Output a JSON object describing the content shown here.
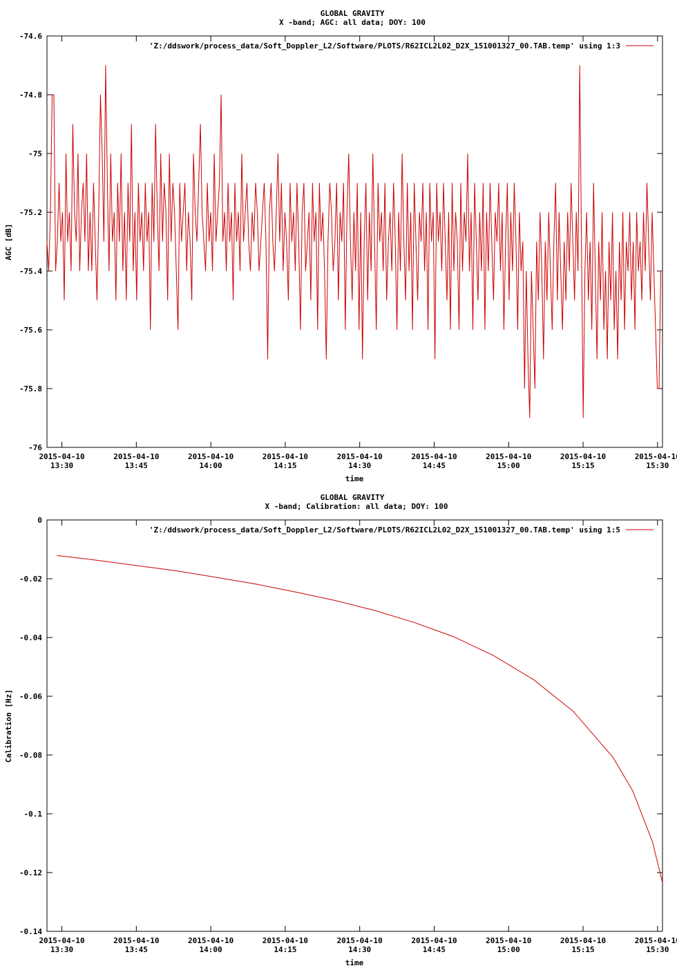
{
  "chart_data": [
    {
      "type": "line",
      "title": "GLOBAL GRAVITY",
      "subtitle": "X -band; AGC: all data; DOY: 100",
      "xlabel": "time",
      "ylabel": "AGC [dB]",
      "xlim": [
        "2015-04-10 13:27",
        "2015-04-10 15:31"
      ],
      "ylim": [
        -76,
        -74.6
      ],
      "yticks": [
        -74.6,
        -74.8,
        -75,
        -75.2,
        -75.4,
        -75.6,
        -75.8,
        -76
      ],
      "ytick_labels": [
        "-74.6",
        "-74.8",
        "-75",
        "-75.2",
        "-75.4",
        "-75.6",
        "-75.8",
        "-76"
      ],
      "xticks": [
        "13:30",
        "13:45",
        "14:00",
        "14:15",
        "14:30",
        "14:45",
        "15:00",
        "15:15",
        "15:30"
      ],
      "xtick_dates": [
        "2015-04-10",
        "2015-04-10",
        "2015-04-10",
        "2015-04-10",
        "2015-04-10",
        "2015-04-10",
        "2015-04-10",
        "2015-04-10",
        "2015-04-10"
      ],
      "legend_position": "top-right",
      "grid": false,
      "color": "#cc0000",
      "series": [
        {
          "name": "'Z:/ddswork/process_data/Soft_Doppler_L2/Software/PLOTS/R62ICL2L02_D2X_151001327_00.TAB.temp' using 1:3",
          "x_start": "2015-04-10 13:27",
          "x_end": "2015-04-10 15:31",
          "values": [
            -75.3,
            -75.4,
            -75.2,
            -74.8,
            -74.8,
            -75.4,
            -75.3,
            -75.1,
            -75.3,
            -75.2,
            -75.5,
            -75.0,
            -75.3,
            -75.2,
            -75.4,
            -74.9,
            -75.2,
            -75.3,
            -75.0,
            -75.4,
            -75.2,
            -75.1,
            -75.3,
            -75.0,
            -75.4,
            -75.2,
            -75.4,
            -75.1,
            -75.3,
            -75.5,
            -75.2,
            -74.8,
            -75.0,
            -75.3,
            -74.7,
            -75.1,
            -75.4,
            -75.0,
            -75.3,
            -75.2,
            -75.5,
            -75.1,
            -75.3,
            -75.0,
            -75.4,
            -75.2,
            -75.5,
            -75.1,
            -75.3,
            -74.9,
            -75.4,
            -75.2,
            -75.5,
            -75.1,
            -75.3,
            -75.2,
            -75.4,
            -75.1,
            -75.3,
            -75.2,
            -75.6,
            -75.1,
            -75.3,
            -74.9,
            -75.2,
            -75.4,
            -75.0,
            -75.3,
            -75.1,
            -75.2,
            -75.5,
            -75.0,
            -75.3,
            -75.1,
            -75.2,
            -75.4,
            -75.6,
            -75.1,
            -75.3,
            -75.2,
            -75.1,
            -75.4,
            -75.2,
            -75.3,
            -75.5,
            -75.0,
            -75.2,
            -75.3,
            -75.1,
            -74.9,
            -75.2,
            -75.3,
            -75.4,
            -75.1,
            -75.3,
            -75.2,
            -75.4,
            -75.0,
            -75.3,
            -75.2,
            -75.1,
            -74.8,
            -75.3,
            -75.2,
            -75.4,
            -75.1,
            -75.3,
            -75.2,
            -75.5,
            -75.1,
            -75.3,
            -75.2,
            -75.4,
            -75.0,
            -75.3,
            -75.2,
            -75.1,
            -75.3,
            -75.4,
            -75.2,
            -75.3,
            -75.1,
            -75.2,
            -75.4,
            -75.3,
            -75.2,
            -75.1,
            -75.3,
            -75.7,
            -75.2,
            -75.1,
            -75.3,
            -75.4,
            -75.2,
            -75.0,
            -75.3,
            -75.1,
            -75.4,
            -75.2,
            -75.3,
            -75.5,
            -75.1,
            -75.3,
            -75.2,
            -75.4,
            -75.1,
            -75.3,
            -75.6,
            -75.2,
            -75.1,
            -75.4,
            -75.3,
            -75.2,
            -75.5,
            -75.1,
            -75.3,
            -75.2,
            -75.6,
            -75.1,
            -75.3,
            -75.2,
            -75.4,
            -75.7,
            -75.3,
            -75.1,
            -75.2,
            -75.4,
            -75.3,
            -75.1,
            -75.5,
            -75.2,
            -75.3,
            -75.1,
            -75.6,
            -75.2,
            -75.0,
            -75.3,
            -75.5,
            -75.2,
            -75.4,
            -75.1,
            -75.6,
            -75.2,
            -75.7,
            -75.3,
            -75.1,
            -75.5,
            -75.2,
            -75.4,
            -75.0,
            -75.3,
            -75.6,
            -75.1,
            -75.3,
            -75.2,
            -75.4,
            -75.1,
            -75.5,
            -75.3,
            -75.2,
            -75.4,
            -75.1,
            -75.3,
            -75.6,
            -75.2,
            -75.4,
            -75.0,
            -75.3,
            -75.5,
            -75.1,
            -75.4,
            -75.2,
            -75.6,
            -75.1,
            -75.3,
            -75.5,
            -75.2,
            -75.3,
            -75.1,
            -75.4,
            -75.2,
            -75.6,
            -75.1,
            -75.3,
            -75.2,
            -75.7,
            -75.1,
            -75.3,
            -75.2,
            -75.4,
            -75.1,
            -75.3,
            -75.5,
            -75.2,
            -75.6,
            -75.1,
            -75.4,
            -75.2,
            -75.3,
            -75.6,
            -75.1,
            -75.4,
            -75.2,
            -75.3,
            -75.0,
            -75.4,
            -75.2,
            -75.6,
            -75.1,
            -75.3,
            -75.5,
            -75.2,
            -75.4,
            -75.1,
            -75.6,
            -75.2,
            -75.4,
            -75.1,
            -75.3,
            -75.5,
            -75.2,
            -75.3,
            -75.1,
            -75.4,
            -75.2,
            -75.6,
            -75.3,
            -75.1,
            -75.5,
            -75.2,
            -75.4,
            -75.1,
            -75.3,
            -75.6,
            -75.2,
            -75.4,
            -75.3,
            -75.8,
            -75.4,
            -75.7,
            -75.9,
            -75.4,
            -75.6,
            -75.8,
            -75.3,
            -75.5,
            -75.2,
            -75.4,
            -75.7,
            -75.3,
            -75.5,
            -75.2,
            -75.4,
            -75.6,
            -75.3,
            -75.1,
            -75.5,
            -75.2,
            -75.4,
            -75.6,
            -75.3,
            -75.5,
            -75.2,
            -75.4,
            -75.1,
            -75.3,
            -75.5,
            -75.2,
            -75.4,
            -74.7,
            -75.3,
            -75.9,
            -75.4,
            -75.2,
            -75.5,
            -75.3,
            -75.6,
            -75.1,
            -75.4,
            -75.7,
            -75.3,
            -75.5,
            -75.2,
            -75.6,
            -75.4,
            -75.7,
            -75.3,
            -75.5,
            -75.2,
            -75.6,
            -75.4,
            -75.7,
            -75.3,
            -75.5,
            -75.2,
            -75.6,
            -75.3,
            -75.4,
            -75.2,
            -75.5,
            -75.3,
            -75.6,
            -75.2,
            -75.4,
            -75.3,
            -75.5,
            -75.2,
            -75.4,
            -75.1,
            -75.3,
            -75.5,
            -75.2,
            -75.4,
            -75.6,
            -75.8,
            -75.8,
            -75.4,
            -75.4
          ]
        }
      ]
    },
    {
      "type": "line",
      "title": "GLOBAL GRAVITY",
      "subtitle": "X -band; Calibration: all data; DOY: 100",
      "xlabel": "time",
      "ylabel": "Calibration [Hz]",
      "xlim": [
        "2015-04-10 13:27",
        "2015-04-10 15:31"
      ],
      "ylim": [
        -0.14,
        0
      ],
      "yticks": [
        0,
        -0.02,
        -0.04,
        -0.06,
        -0.08,
        -0.1,
        -0.12,
        -0.14
      ],
      "ytick_labels": [
        "0",
        "-0.02",
        "-0.04",
        "-0.06",
        "-0.08",
        "-0.1",
        "-0.12",
        "-0.14"
      ],
      "xticks": [
        "13:30",
        "13:45",
        "14:00",
        "14:15",
        "14:30",
        "14:45",
        "15:00",
        "15:15",
        "15:30"
      ],
      "xtick_dates": [
        "2015-04-10",
        "2015-04-10",
        "2015-04-10",
        "2015-04-10",
        "2015-04-10",
        "2015-04-10",
        "2015-04-10",
        "2015-04-10",
        "2015-04-10"
      ],
      "legend_position": "top-right",
      "grid": false,
      "color": "#cc0000",
      "series": [
        {
          "name": "'Z:/ddswork/process_data/Soft_Doppler_L2/Software/PLOTS/R62ICL2L02_D2X_151001327_00.TAB.temp' using 1:5",
          "x": [
            "2015-04-10 13:29",
            "2015-04-10 13:37",
            "2015-04-10 13:45",
            "2015-04-10 13:53",
            "2015-04-10 14:01",
            "2015-04-10 14:09",
            "2015-04-10 14:17",
            "2015-04-10 14:25",
            "2015-04-10 14:33",
            "2015-04-10 14:41",
            "2015-04-10 14:49",
            "2015-04-10 14:57",
            "2015-04-10 15:05",
            "2015-04-10 15:13",
            "2015-04-10 15:21",
            "2015-04-10 15:25",
            "2015-04-10 15:29",
            "2015-04-10 15:31"
          ],
          "values": [
            -0.0121,
            -0.0137,
            -0.0155,
            -0.0173,
            -0.0195,
            -0.0218,
            -0.0245,
            -0.0274,
            -0.0308,
            -0.0349,
            -0.0398,
            -0.0462,
            -0.0543,
            -0.0651,
            -0.0807,
            -0.0922,
            -0.1096,
            -0.1235
          ]
        }
      ]
    }
  ]
}
